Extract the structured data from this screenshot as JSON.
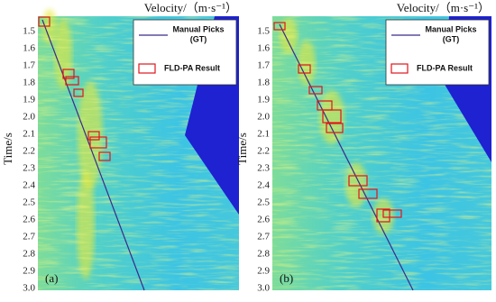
{
  "panels": [
    {
      "title": "Velocity/（m·s⁻¹）",
      "y_label": "Time/s",
      "y_ticks": [
        "1.5",
        "1.6",
        "1.7",
        "1.8",
        "1.9",
        "2.0",
        "2.1",
        "2.2",
        "2.3",
        "2.4",
        "2.5",
        "2.6",
        "2.7",
        "2.8",
        "2.9",
        "3.0"
      ],
      "legend": {
        "line_label": [
          "Manual Picks",
          "(GT)"
        ],
        "box_label": "FLD-PA Result"
      },
      "panel_label": "(a)"
    },
    {
      "title": "Velocity/（m·s⁻¹）",
      "y_label": "Time/s",
      "y_ticks": [
        "1.5",
        "1.6",
        "1.7",
        "1.8",
        "1.9",
        "2.0",
        "2.1",
        "2.2",
        "2.3",
        "2.4",
        "2.5",
        "2.6",
        "2.7",
        "2.8",
        "2.9",
        "3.0"
      ],
      "legend": {
        "line_label": [
          "Manual Picks",
          "(GT)"
        ],
        "box_label": "FLD-PA Result"
      },
      "panel_label": "(b)"
    }
  ]
}
